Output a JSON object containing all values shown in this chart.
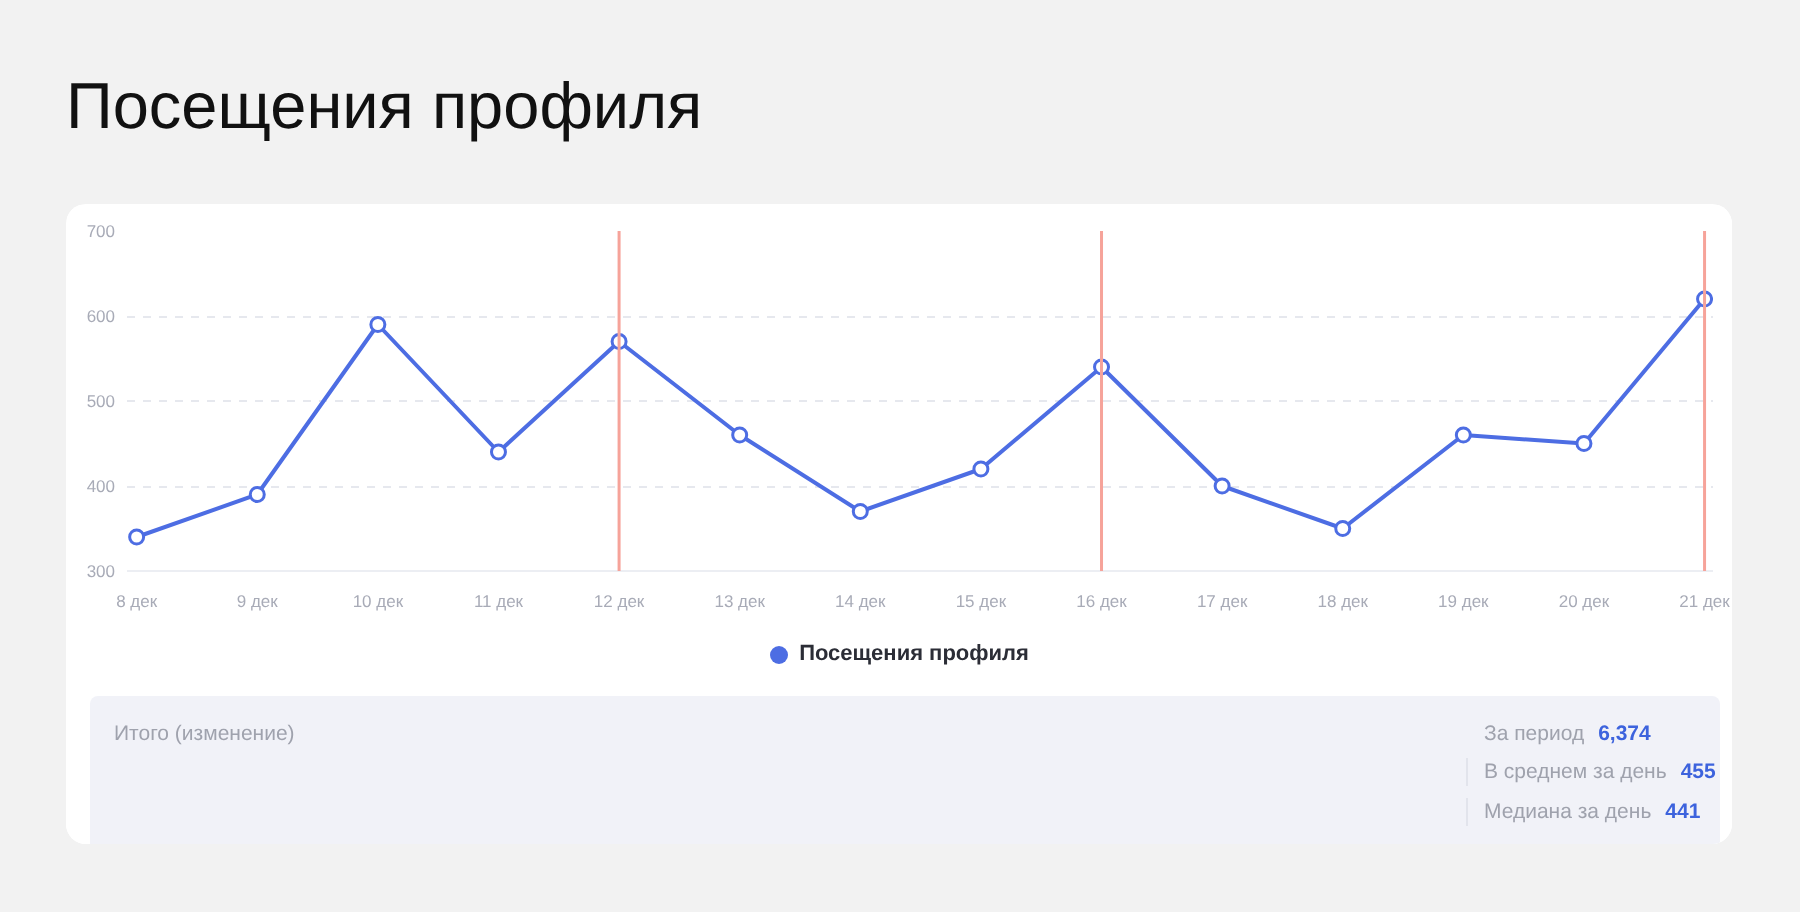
{
  "chart_data": {
    "type": "line",
    "title": "Посещения профиля",
    "categories": [
      "8 дек",
      "9 дек",
      "10 дек",
      "11 дек",
      "12 дек",
      "13 дек",
      "14 дек",
      "15 дек",
      "16 дек",
      "17 дек",
      "18 дек",
      "19 дек",
      "20 дек",
      "21 дек"
    ],
    "series": [
      {
        "name": "Посещения профиля",
        "color": "#4d6de3",
        "values": [
          340,
          390,
          590,
          440,
          570,
          460,
          370,
          420,
          540,
          400,
          350,
          460,
          450,
          620
        ]
      }
    ],
    "ylim": [
      300,
      700
    ],
    "yticks": [
      300,
      400,
      500,
      600,
      700
    ],
    "grid": "y",
    "legend": "bottom",
    "marker": "circle",
    "line_style": "solid",
    "ref_lines": [
      {
        "axis": "x",
        "value": "12 дек",
        "color": "#f6a39a"
      },
      {
        "axis": "x",
        "value": "16 дек",
        "color": "#f6a39a"
      },
      {
        "axis": "x",
        "value": "21 дек",
        "color": "#f6a39a"
      }
    ],
    "annotations": [
      "Итого (изменение)",
      "За период",
      "6,374",
      "В среднем за день",
      "455",
      "Медиана за день",
      "441"
    ]
  }
}
